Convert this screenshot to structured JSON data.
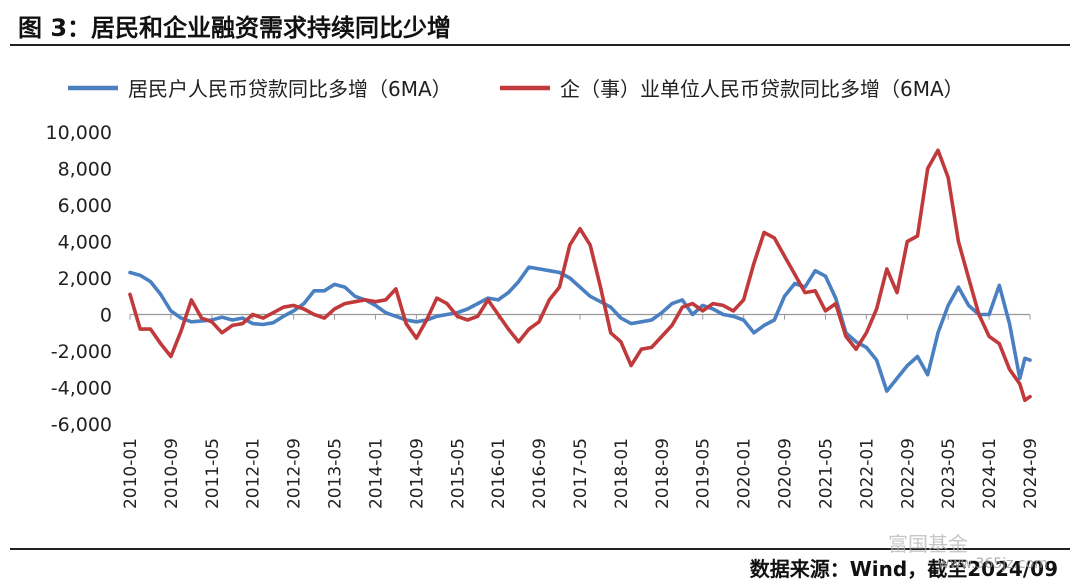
{
  "figure": {
    "title": "图 3：居民和企业融资需求持续同比少增",
    "source": "数据来源：Wind，截至2024/09",
    "watermark": "富国基金",
    "watermark_url": "www.365jz.com"
  },
  "chart_data": {
    "type": "line",
    "title": "",
    "xlabel": "",
    "ylabel": "",
    "ylim": [
      -6000,
      10000
    ],
    "yticks": [
      10000,
      8000,
      6000,
      4000,
      2000,
      0,
      -2000,
      -4000,
      -6000
    ],
    "ytick_labels": [
      "10,000",
      "8,000",
      "6,000",
      "4,000",
      "2,000",
      "0",
      "-2,000",
      "-4,000",
      "-6,000"
    ],
    "xticks": [
      "2010-01",
      "2010-09",
      "2011-05",
      "2012-01",
      "2012-09",
      "2013-05",
      "2014-01",
      "2014-09",
      "2015-05",
      "2016-01",
      "2016-09",
      "2017-05",
      "2018-01",
      "2018-09",
      "2019-05",
      "2020-01",
      "2020-09",
      "2021-05",
      "2022-01",
      "2022-09",
      "2023-05",
      "2024-01",
      "2024-09"
    ],
    "x_start": "2010-01",
    "x_end": "2024-09",
    "grid": false,
    "legend_position": "top",
    "series": [
      {
        "name": "居民户人民币贷款同比多增（6MA）",
        "color": "#4a7fc1",
        "points": [
          [
            "2010-01",
            2300
          ],
          [
            "2010-03",
            2150
          ],
          [
            "2010-05",
            1800
          ],
          [
            "2010-07",
            1100
          ],
          [
            "2010-09",
            200
          ],
          [
            "2010-11",
            -200
          ],
          [
            "2011-01",
            -400
          ],
          [
            "2011-03",
            -350
          ],
          [
            "2011-05",
            -300
          ],
          [
            "2011-07",
            -150
          ],
          [
            "2011-09",
            -300
          ],
          [
            "2011-11",
            -200
          ],
          [
            "2012-01",
            -500
          ],
          [
            "2012-03",
            -550
          ],
          [
            "2012-05",
            -450
          ],
          [
            "2012-07",
            -100
          ],
          [
            "2012-09",
            200
          ],
          [
            "2012-11",
            600
          ],
          [
            "2013-01",
            1300
          ],
          [
            "2013-03",
            1300
          ],
          [
            "2013-05",
            1650
          ],
          [
            "2013-07",
            1500
          ],
          [
            "2013-09",
            1000
          ],
          [
            "2013-11",
            800
          ],
          [
            "2014-01",
            500
          ],
          [
            "2014-03",
            100
          ],
          [
            "2014-05",
            -100
          ],
          [
            "2014-07",
            -300
          ],
          [
            "2014-09",
            -400
          ],
          [
            "2014-11",
            -300
          ],
          [
            "2015-01",
            -100
          ],
          [
            "2015-03",
            0
          ],
          [
            "2015-05",
            100
          ],
          [
            "2015-07",
            300
          ],
          [
            "2015-09",
            600
          ],
          [
            "2015-11",
            900
          ],
          [
            "2016-01",
            800
          ],
          [
            "2016-03",
            1200
          ],
          [
            "2016-05",
            1800
          ],
          [
            "2016-07",
            2600
          ],
          [
            "2016-09",
            2500
          ],
          [
            "2016-11",
            2400
          ],
          [
            "2017-01",
            2300
          ],
          [
            "2017-03",
            2000
          ],
          [
            "2017-05",
            1500
          ],
          [
            "2017-07",
            1000
          ],
          [
            "2017-09",
            700
          ],
          [
            "2017-11",
            400
          ],
          [
            "2018-01",
            -200
          ],
          [
            "2018-03",
            -500
          ],
          [
            "2018-05",
            -400
          ],
          [
            "2018-07",
            -300
          ],
          [
            "2018-09",
            100
          ],
          [
            "2018-11",
            600
          ],
          [
            "2019-01",
            800
          ],
          [
            "2019-03",
            0
          ],
          [
            "2019-05",
            500
          ],
          [
            "2019-07",
            300
          ],
          [
            "2019-09",
            0
          ],
          [
            "2019-11",
            -100
          ],
          [
            "2020-01",
            -300
          ],
          [
            "2020-03",
            -1000
          ],
          [
            "2020-05",
            -600
          ],
          [
            "2020-07",
            -300
          ],
          [
            "2020-09",
            1000
          ],
          [
            "2020-11",
            1700
          ],
          [
            "2021-01",
            1500
          ],
          [
            "2021-03",
            2400
          ],
          [
            "2021-05",
            2100
          ],
          [
            "2021-07",
            900
          ],
          [
            "2021-09",
            -1000
          ],
          [
            "2021-11",
            -1500
          ],
          [
            "2022-01",
            -1800
          ],
          [
            "2022-03",
            -2500
          ],
          [
            "2022-05",
            -4200
          ],
          [
            "2022-07",
            -3500
          ],
          [
            "2022-09",
            -2800
          ],
          [
            "2022-11",
            -2300
          ],
          [
            "2023-01",
            -3300
          ],
          [
            "2023-03",
            -1000
          ],
          [
            "2023-05",
            500
          ],
          [
            "2023-07",
            1500
          ],
          [
            "2023-09",
            500
          ],
          [
            "2023-11",
            0
          ],
          [
            "2024-01",
            0
          ],
          [
            "2024-03",
            1600
          ],
          [
            "2024-05",
            -500
          ],
          [
            "2024-07",
            -3500
          ],
          [
            "2024-08",
            -2400
          ],
          [
            "2024-09",
            -2500
          ]
        ]
      },
      {
        "name": "企（事）业单位人民币贷款同比多增（6MA）",
        "color": "#c0393b",
        "points": [
          [
            "2010-01",
            1100
          ],
          [
            "2010-03",
            -800
          ],
          [
            "2010-05",
            -800
          ],
          [
            "2010-07",
            -1600
          ],
          [
            "2010-09",
            -2300
          ],
          [
            "2010-11",
            -900
          ],
          [
            "2011-01",
            800
          ],
          [
            "2011-03",
            -200
          ],
          [
            "2011-05",
            -400
          ],
          [
            "2011-07",
            -1000
          ],
          [
            "2011-09",
            -600
          ],
          [
            "2011-11",
            -500
          ],
          [
            "2012-01",
            0
          ],
          [
            "2012-03",
            -200
          ],
          [
            "2012-05",
            100
          ],
          [
            "2012-07",
            400
          ],
          [
            "2012-09",
            500
          ],
          [
            "2012-11",
            300
          ],
          [
            "2013-01",
            0
          ],
          [
            "2013-03",
            -200
          ],
          [
            "2013-05",
            300
          ],
          [
            "2013-07",
            600
          ],
          [
            "2013-09",
            700
          ],
          [
            "2013-11",
            800
          ],
          [
            "2014-01",
            700
          ],
          [
            "2014-03",
            800
          ],
          [
            "2014-05",
            1400
          ],
          [
            "2014-07",
            -500
          ],
          [
            "2014-09",
            -1300
          ],
          [
            "2014-11",
            -300
          ],
          [
            "2015-01",
            900
          ],
          [
            "2015-03",
            600
          ],
          [
            "2015-05",
            -100
          ],
          [
            "2015-07",
            -300
          ],
          [
            "2015-09",
            -100
          ],
          [
            "2015-11",
            800
          ],
          [
            "2016-01",
            0
          ],
          [
            "2016-03",
            -800
          ],
          [
            "2016-05",
            -1500
          ],
          [
            "2016-07",
            -800
          ],
          [
            "2016-09",
            -400
          ],
          [
            "2016-11",
            800
          ],
          [
            "2017-01",
            1500
          ],
          [
            "2017-03",
            3800
          ],
          [
            "2017-05",
            4700
          ],
          [
            "2017-07",
            3800
          ],
          [
            "2017-09",
            1500
          ],
          [
            "2017-11",
            -1000
          ],
          [
            "2018-01",
            -1500
          ],
          [
            "2018-03",
            -2800
          ],
          [
            "2018-05",
            -1900
          ],
          [
            "2018-07",
            -1800
          ],
          [
            "2018-09",
            -1200
          ],
          [
            "2018-11",
            -600
          ],
          [
            "2019-01",
            400
          ],
          [
            "2019-03",
            600
          ],
          [
            "2019-05",
            200
          ],
          [
            "2019-07",
            600
          ],
          [
            "2019-09",
            500
          ],
          [
            "2019-11",
            200
          ],
          [
            "2020-01",
            800
          ],
          [
            "2020-03",
            2800
          ],
          [
            "2020-05",
            4500
          ],
          [
            "2020-07",
            4200
          ],
          [
            "2020-09",
            3200
          ],
          [
            "2020-11",
            2200
          ],
          [
            "2021-01",
            1200
          ],
          [
            "2021-03",
            1300
          ],
          [
            "2021-05",
            200
          ],
          [
            "2021-07",
            600
          ],
          [
            "2021-09",
            -1200
          ],
          [
            "2021-11",
            -1900
          ],
          [
            "2022-01",
            -1000
          ],
          [
            "2022-03",
            300
          ],
          [
            "2022-05",
            2500
          ],
          [
            "2022-07",
            1200
          ],
          [
            "2022-09",
            4000
          ],
          [
            "2022-11",
            4300
          ],
          [
            "2023-01",
            8000
          ],
          [
            "2023-03",
            9000
          ],
          [
            "2023-05",
            7500
          ],
          [
            "2023-07",
            4000
          ],
          [
            "2023-09",
            2000
          ],
          [
            "2023-11",
            0
          ],
          [
            "2024-01",
            -1200
          ],
          [
            "2024-03",
            -1600
          ],
          [
            "2024-05",
            -3000
          ],
          [
            "2024-07",
            -3800
          ],
          [
            "2024-08",
            -4700
          ],
          [
            "2024-09",
            -4500
          ]
        ]
      }
    ]
  }
}
